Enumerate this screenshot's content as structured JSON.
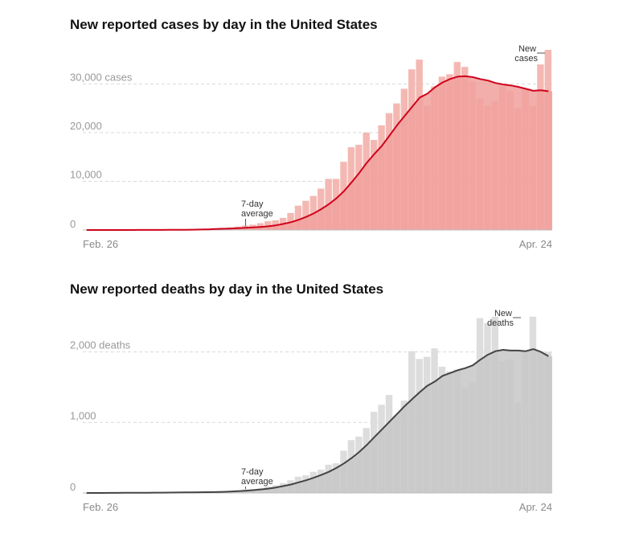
{
  "chart_data": [
    {
      "type": "bar",
      "title": "New reported cases by day in the United States",
      "start_label": "Feb. 26",
      "end_label": "Apr. 24",
      "ylim": [
        0,
        37000
      ],
      "yticks": [
        {
          "value": 0,
          "label": "0"
        },
        {
          "value": 10000,
          "label": "10,000"
        },
        {
          "value": 20000,
          "label": "20,000"
        },
        {
          "value": 30000,
          "label": "30,000 cases"
        }
      ],
      "bar_annotation": "New cases",
      "avg_annotation": "7-day average",
      "colors": {
        "bar": "#f4b8b3",
        "avg_fill": "#f0a09c",
        "line": "#d0021b"
      },
      "series": [
        {
          "name": "New cases",
          "values": [
            2,
            1,
            5,
            6,
            10,
            8,
            15,
            20,
            30,
            45,
            60,
            60,
            70,
            110,
            150,
            200,
            250,
            350,
            450,
            550,
            700,
            900,
            1100,
            1400,
            1800,
            2000,
            2500,
            3500,
            5000,
            6000,
            7000,
            8500,
            10500,
            10500,
            14000,
            17000,
            17500,
            20000,
            18500,
            21500,
            24000,
            26000,
            29000,
            33000,
            35000,
            25500,
            29500,
            31500,
            32000,
            34500,
            33500,
            30500,
            27000,
            25500,
            26500,
            29500,
            28500,
            25000,
            29000,
            25500,
            34000,
            37000
          ]
        },
        {
          "name": "7-day average",
          "values": [
            1,
            1,
            2,
            3,
            4,
            5,
            7,
            9,
            12,
            15,
            20,
            25,
            35,
            50,
            70,
            100,
            140,
            190,
            240,
            300,
            370,
            450,
            530,
            620,
            760,
            960,
            1250,
            1600,
            2100,
            2700,
            3400,
            4300,
            5300,
            6500,
            8000,
            9800,
            11700,
            13800,
            15600,
            17300,
            19400,
            21500,
            23400,
            25300,
            27200,
            28000,
            29300,
            30300,
            31000,
            31500,
            31600,
            31400,
            31000,
            30700,
            30200,
            29900,
            29700,
            29400,
            29000,
            28600,
            28700,
            28500
          ]
        }
      ]
    },
    {
      "type": "bar",
      "title": "New reported deaths by day in the United States",
      "start_label": "Feb. 26",
      "end_label": "Apr. 24",
      "ylim": [
        0,
        2600
      ],
      "yticks": [
        {
          "value": 0,
          "label": "0"
        },
        {
          "value": 1000,
          "label": "1,000"
        },
        {
          "value": 2000,
          "label": "2,000 deaths"
        }
      ],
      "bar_annotation": "New deaths",
      "avg_annotation": "7-day average",
      "colors": {
        "bar": "#dddddd",
        "avg_fill": "#c7c7c7",
        "line": "#444444"
      },
      "series": [
        {
          "name": "New deaths",
          "values": [
            0,
            0,
            1,
            2,
            3,
            2,
            4,
            3,
            5,
            6,
            8,
            10,
            8,
            9,
            12,
            13,
            15,
            20,
            25,
            30,
            40,
            50,
            55,
            65,
            90,
            110,
            140,
            180,
            230,
            250,
            300,
            330,
            400,
            420,
            600,
            750,
            800,
            920,
            1150,
            1250,
            1390,
            1100,
            1310,
            2010,
            1900,
            1930,
            2050,
            1790,
            1720,
            1750,
            1490,
            1560,
            2480,
            2410,
            2500,
            1870,
            1890,
            1280,
            2010,
            2500,
            2010,
            2000
          ]
        },
        {
          "name": "7-day average",
          "values": [
            0,
            0,
            0,
            1,
            1,
            2,
            2,
            3,
            3,
            4,
            5,
            6,
            7,
            8,
            9,
            10,
            11,
            13,
            16,
            20,
            25,
            32,
            40,
            50,
            62,
            78,
            98,
            120,
            150,
            180,
            215,
            255,
            300,
            355,
            420,
            495,
            580,
            680,
            790,
            900,
            1010,
            1120,
            1230,
            1330,
            1430,
            1520,
            1580,
            1660,
            1700,
            1740,
            1770,
            1810,
            1890,
            1960,
            2010,
            2030,
            2020,
            2020,
            2010,
            2040,
            2000,
            1940
          ]
        }
      ]
    }
  ]
}
